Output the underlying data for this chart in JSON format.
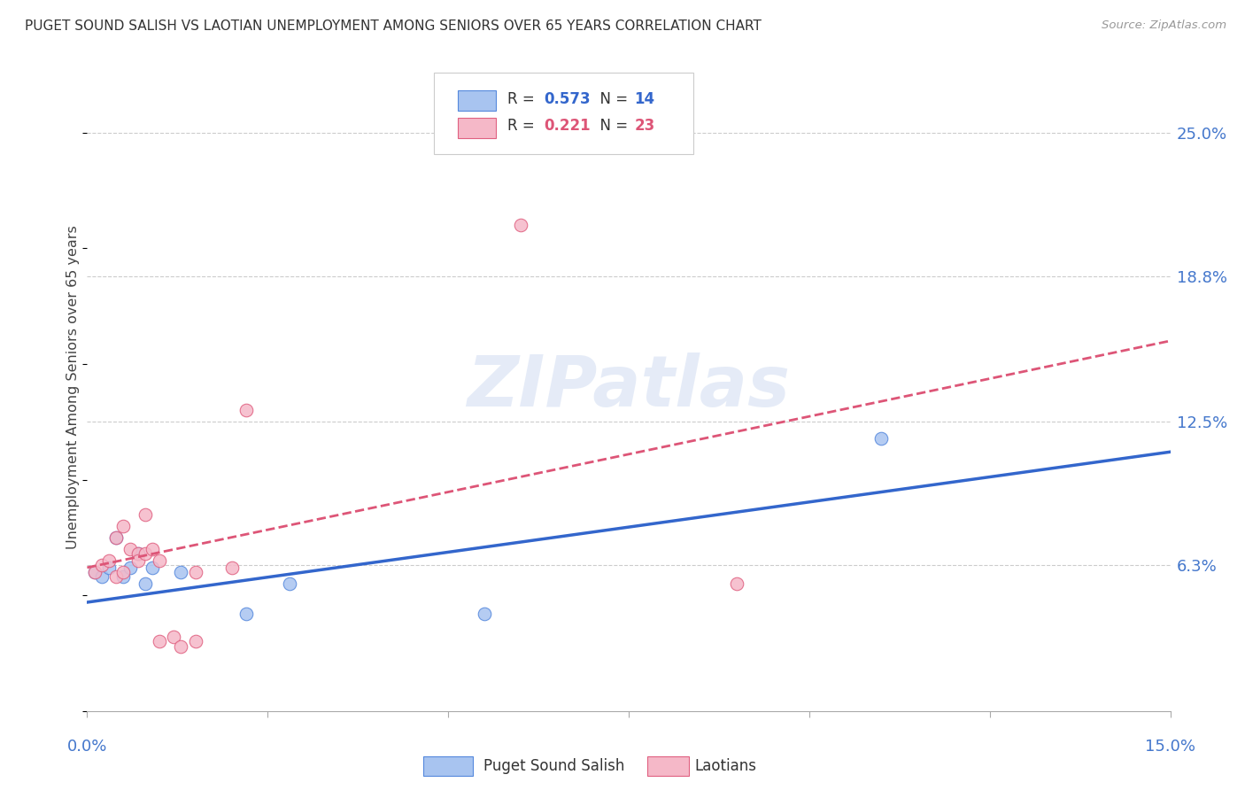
{
  "title": "PUGET SOUND SALISH VS LAOTIAN UNEMPLOYMENT AMONG SENIORS OVER 65 YEARS CORRELATION CHART",
  "source": "Source: ZipAtlas.com",
  "ylabel": "Unemployment Among Seniors over 65 years",
  "xlim": [
    0.0,
    0.15
  ],
  "ylim": [
    0.0,
    0.28
  ],
  "ytick_positions": [
    0.063,
    0.125,
    0.188,
    0.25
  ],
  "ytick_labels": [
    "6.3%",
    "12.5%",
    "18.8%",
    "25.0%"
  ],
  "blue_color": "#a8c4f0",
  "pink_color": "#f5b8c8",
  "blue_edge_color": "#5588dd",
  "pink_edge_color": "#e06080",
  "blue_line_color": "#3366cc",
  "pink_line_color": "#dd5577",
  "axis_label_color": "#4477cc",
  "watermark_text": "ZIPatlas",
  "legend_r_blue": "0.573",
  "legend_n_blue": "14",
  "legend_r_pink": "0.221",
  "legend_n_pink": "23",
  "blue_points_x": [
    0.001,
    0.002,
    0.003,
    0.004,
    0.005,
    0.006,
    0.007,
    0.008,
    0.009,
    0.013,
    0.022,
    0.028,
    0.055,
    0.11
  ],
  "blue_points_y": [
    0.06,
    0.058,
    0.062,
    0.075,
    0.058,
    0.062,
    0.068,
    0.055,
    0.062,
    0.06,
    0.042,
    0.055,
    0.042,
    0.118
  ],
  "pink_points_x": [
    0.001,
    0.002,
    0.003,
    0.004,
    0.004,
    0.005,
    0.005,
    0.006,
    0.007,
    0.007,
    0.008,
    0.008,
    0.009,
    0.01,
    0.01,
    0.012,
    0.013,
    0.015,
    0.015,
    0.02,
    0.022,
    0.06,
    0.09
  ],
  "pink_points_y": [
    0.06,
    0.063,
    0.065,
    0.075,
    0.058,
    0.08,
    0.06,
    0.07,
    0.068,
    0.065,
    0.085,
    0.068,
    0.07,
    0.065,
    0.03,
    0.032,
    0.028,
    0.03,
    0.06,
    0.062,
    0.13,
    0.21,
    0.055
  ],
  "blue_trendline_x": [
    0.0,
    0.15
  ],
  "blue_trendline_y": [
    0.047,
    0.112
  ],
  "pink_trendline_x": [
    0.0,
    0.15
  ],
  "pink_trendline_y": [
    0.062,
    0.16
  ],
  "marker_size": 110,
  "bottom_legend_blue_label": "Puget Sound Salish",
  "bottom_legend_pink_label": "Laotians"
}
